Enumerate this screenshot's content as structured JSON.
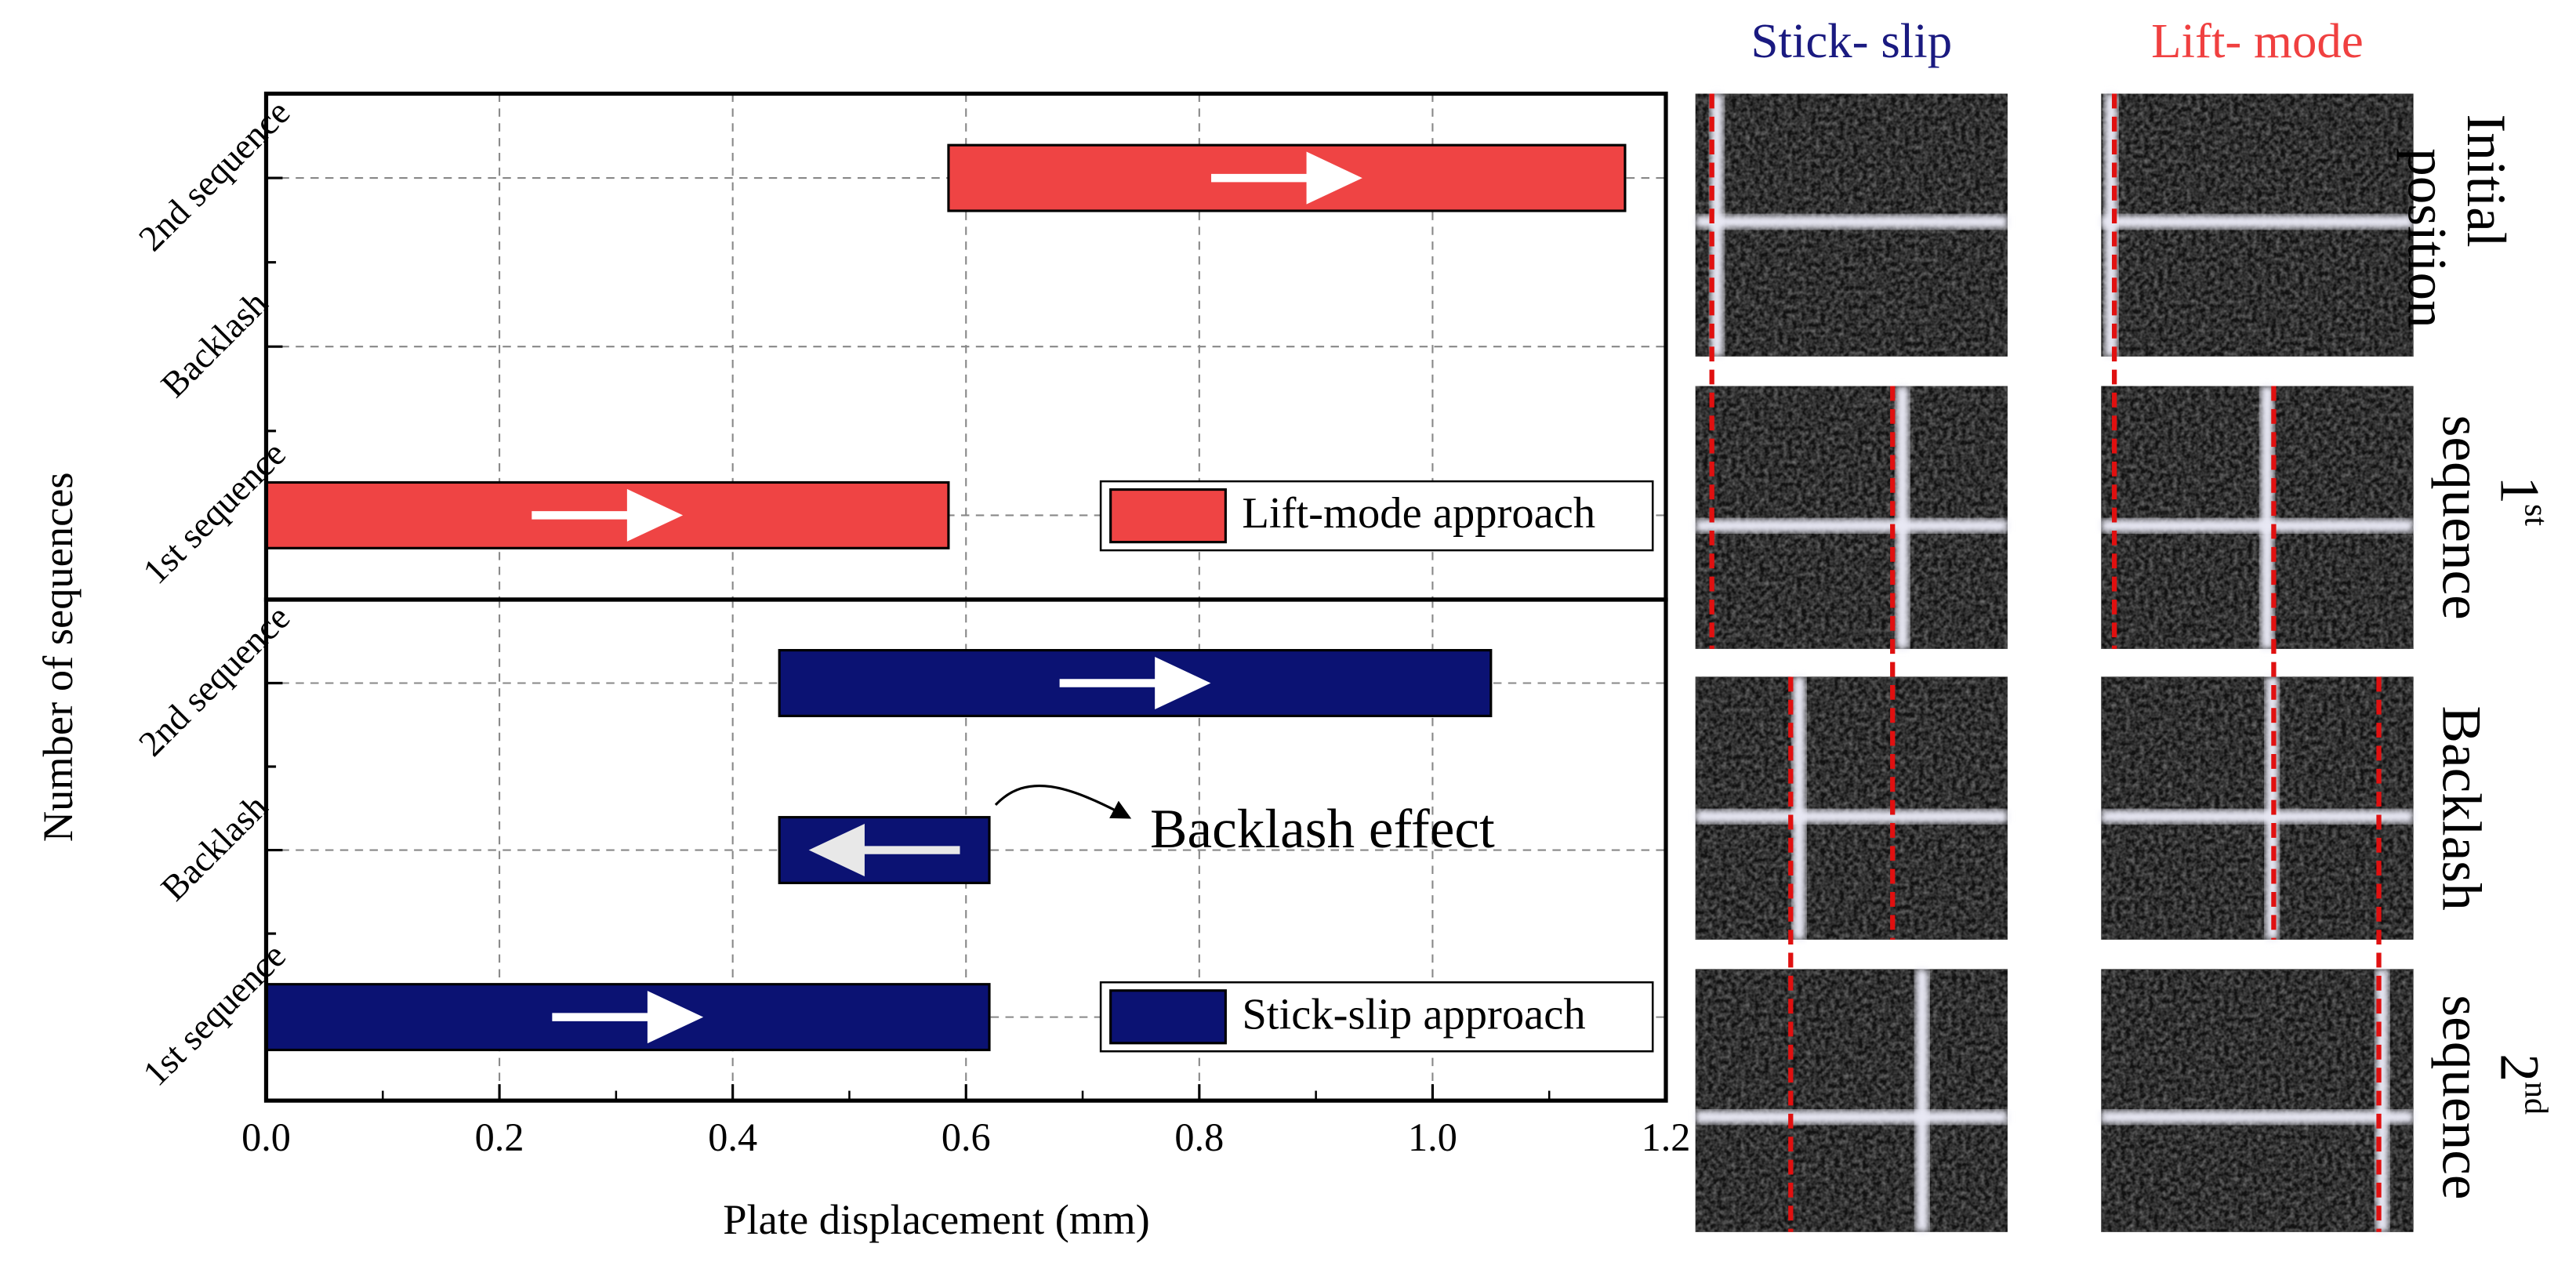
{
  "chart_data": {
    "type": "range-bar",
    "xlabel": "Plate displacement (mm)",
    "ylabel": "Number of sequences",
    "xlim": [
      0,
      1.2
    ],
    "xticks": [
      {
        "value": 0,
        "label": "0.0"
      },
      0.2,
      0.4,
      0.6,
      0.8,
      {
        "value": 1,
        "label": "1.0"
      },
      1.2
    ],
    "grid": true,
    "legend": "lower right",
    "panels": [
      {
        "categories": [
          "1st sequence",
          "Backlash",
          "2nd sequence"
        ],
        "series": [
          {
            "name": "Lift-mode approach",
            "color": "#ef4444",
            "start": [
              0,
              null,
              0.585
            ],
            "end": [
              0.585,
              null,
              1.165
            ]
          }
        ]
      },
      {
        "categories": [
          "1st sequence",
          "Backlash",
          "2nd sequence"
        ],
        "series": [
          {
            "name": "Stick-slip approach",
            "color": "#0b1273",
            "start": [
              0,
              0.62,
              0.44
            ],
            "end": [
              0.62,
              0.44,
              1.05
            ]
          }
        ],
        "annotation": "Backlash effect"
      }
    ]
  },
  "images": {
    "columns": [
      {
        "title": "Stick- slip",
        "color": "#1a1a80"
      },
      {
        "title": "Lift- mode",
        "color": "#f04040"
      }
    ],
    "rows": [
      [
        "Initial",
        "position"
      ],
      [
        "1",
        "st",
        "sequence"
      ],
      [
        "Backlash"
      ],
      [
        "2",
        "nd",
        "sequence"
      ]
    ]
  }
}
